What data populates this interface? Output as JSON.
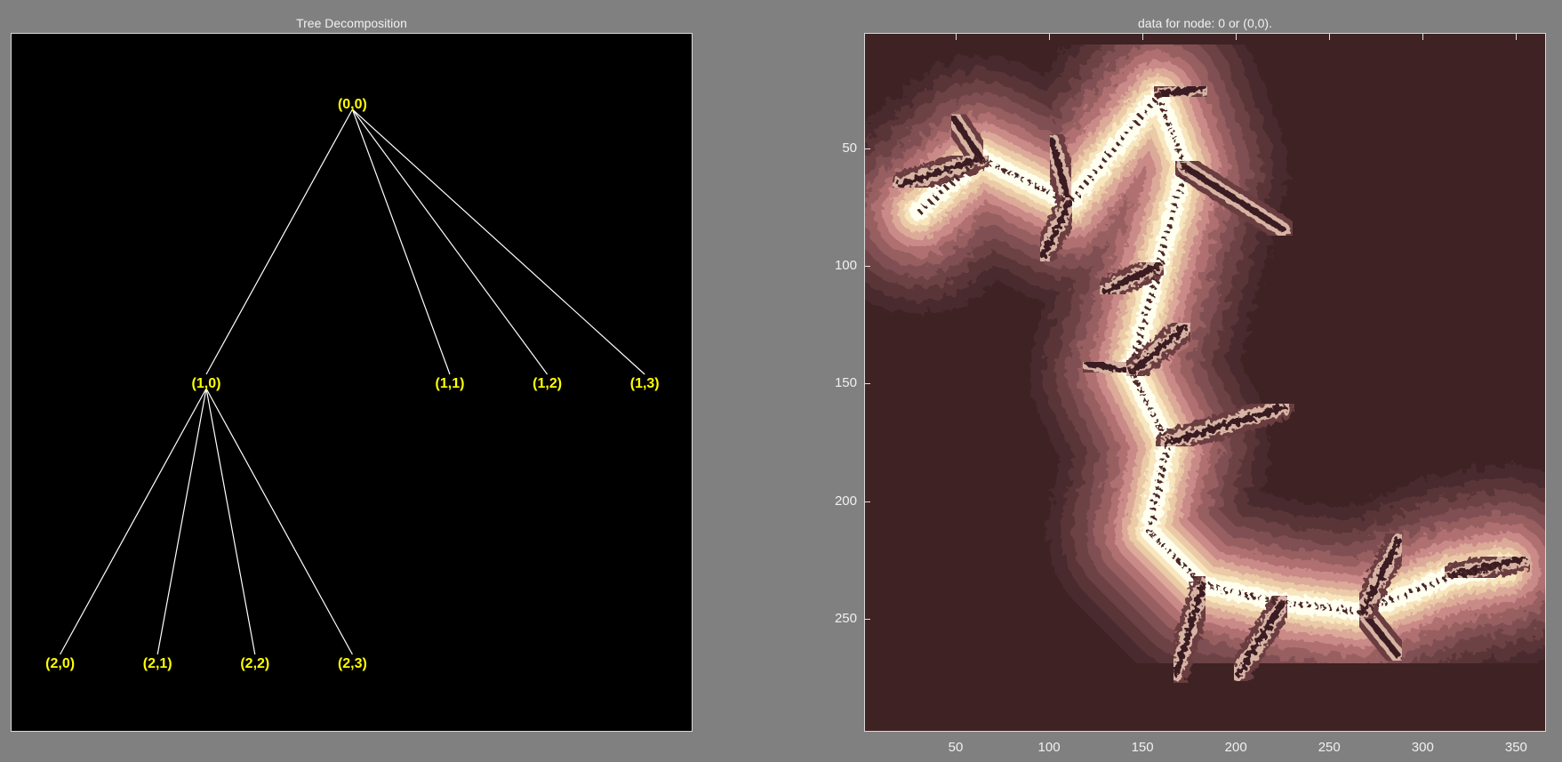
{
  "left_panel": {
    "title": "Tree Decomposition",
    "nodes": [
      {
        "id": "n00",
        "label": "(0,0)",
        "level": 0,
        "col": 4.0
      },
      {
        "id": "n10",
        "label": "(1,0)",
        "level": 1,
        "col": 2.5
      },
      {
        "id": "n11",
        "label": "(1,1)",
        "level": 1,
        "col": 5.0
      },
      {
        "id": "n12",
        "label": "(1,2)",
        "level": 1,
        "col": 6.0
      },
      {
        "id": "n13",
        "label": "(1,3)",
        "level": 1,
        "col": 7.0
      },
      {
        "id": "n20",
        "label": "(2,0)",
        "level": 2,
        "col": 1.0
      },
      {
        "id": "n21",
        "label": "(2,1)",
        "level": 2,
        "col": 2.0
      },
      {
        "id": "n22",
        "label": "(2,2)",
        "level": 2,
        "col": 3.0
      },
      {
        "id": "n23",
        "label": "(2,3)",
        "level": 2,
        "col": 4.0
      }
    ],
    "edges": [
      [
        "n00",
        "n10"
      ],
      [
        "n00",
        "n11"
      ],
      [
        "n00",
        "n12"
      ],
      [
        "n00",
        "n13"
      ],
      [
        "n10",
        "n20"
      ],
      [
        "n10",
        "n21"
      ],
      [
        "n10",
        "n22"
      ],
      [
        "n10",
        "n23"
      ]
    ],
    "colors": {
      "background": "#000000",
      "edge": "#ffffff",
      "label": "#ffff00"
    }
  },
  "right_panel": {
    "title": "data for node: 0 or (0,0).",
    "image_kind": "julia-set fractal, pink colormap",
    "x_axis": {
      "range": [
        1,
        366
      ],
      "ticks": [
        "50",
        "100",
        "150",
        "200",
        "250",
        "300",
        "350"
      ]
    },
    "y_axis": {
      "range": [
        1,
        298
      ],
      "ticks": [
        "50",
        "100",
        "150",
        "200",
        "250"
      ]
    },
    "colors": {
      "outer": "#3e2224",
      "mid": "#b8797b",
      "inner": "#fffff0"
    }
  }
}
